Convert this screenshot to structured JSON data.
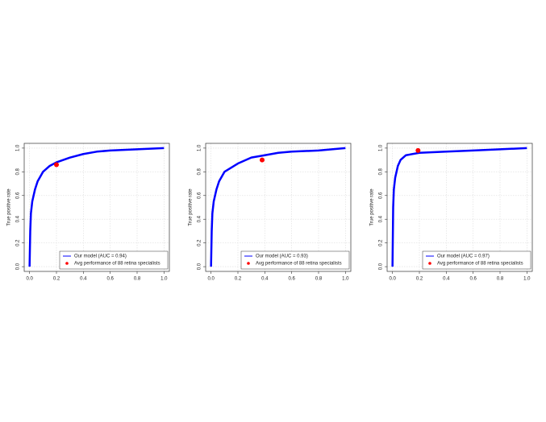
{
  "chart_data": [
    {
      "type": "line",
      "y_label": "True positive rate",
      "grid": true,
      "legend": "lower right",
      "xlim": [
        -0.04,
        1.04
      ],
      "ylim": [
        -0.04,
        1.04
      ],
      "xticks": [
        {
          "value": 0,
          "label": "0.0"
        },
        0.2,
        0.4,
        0.6,
        0.8,
        {
          "value": 1,
          "label": "1.0"
        }
      ],
      "yticks": [
        {
          "value": 0,
          "label": "0.0"
        },
        0.2,
        0.4,
        0.6,
        0.8,
        {
          "value": 1,
          "label": "1.0"
        }
      ],
      "series": [
        {
          "name": "Our model (AUC = 0.94)",
          "color": "#0000ff",
          "type": "line",
          "x": [
            0,
            0.005,
            0.01,
            0.02,
            0.04,
            0.06,
            0.1,
            0.15,
            0.2,
            0.3,
            0.4,
            0.5,
            0.6,
            0.8,
            1
          ],
          "values": [
            0,
            0.3,
            0.45,
            0.55,
            0.65,
            0.72,
            0.8,
            0.85,
            0.88,
            0.92,
            0.95,
            0.97,
            0.98,
            0.99,
            1
          ]
        },
        {
          "name": "Avg performance of 88 retina specialists",
          "color": "#ff0000",
          "type": "scatter",
          "x": [
            0.2
          ],
          "values": [
            0.86
          ]
        }
      ]
    },
    {
      "type": "line",
      "y_label": "True positive rate",
      "grid": true,
      "legend": "lower right",
      "xlim": [
        -0.04,
        1.04
      ],
      "ylim": [
        -0.04,
        1.04
      ],
      "xticks": [
        {
          "value": 0,
          "label": "0.0"
        },
        0.2,
        0.4,
        0.6,
        0.8,
        {
          "value": 1,
          "label": "1.0"
        }
      ],
      "yticks": [
        {
          "value": 0,
          "label": "0.0"
        },
        0.2,
        0.4,
        0.6,
        0.8,
        {
          "value": 1,
          "label": "1.0"
        }
      ],
      "series": [
        {
          "name": "Our model (AUC = 0.93)",
          "color": "#0000ff",
          "type": "line",
          "x": [
            0,
            0.005,
            0.01,
            0.02,
            0.04,
            0.06,
            0.1,
            0.2,
            0.3,
            0.4,
            0.5,
            0.6,
            0.8,
            1
          ],
          "values": [
            0,
            0.3,
            0.45,
            0.55,
            0.65,
            0.72,
            0.8,
            0.87,
            0.92,
            0.94,
            0.96,
            0.97,
            0.98,
            1
          ]
        },
        {
          "name": "Avg performance of 88 retina specialists",
          "color": "#ff0000",
          "type": "scatter",
          "x": [
            0.38
          ],
          "values": [
            0.9
          ]
        }
      ]
    },
    {
      "type": "line",
      "y_label": "True positive rate",
      "grid": true,
      "legend": "lower right",
      "xlim": [
        -0.04,
        1.04
      ],
      "ylim": [
        -0.04,
        1.04
      ],
      "xticks": [
        {
          "value": 0,
          "label": "0.0"
        },
        0.2,
        0.4,
        0.6,
        0.8,
        {
          "value": 1,
          "label": "1.0"
        }
      ],
      "yticks": [
        {
          "value": 0,
          "label": "0.0"
        },
        0.2,
        0.4,
        0.6,
        0.8,
        {
          "value": 1,
          "label": "1.0"
        }
      ],
      "series": [
        {
          "name": "Our model (AUC = 0.97)",
          "color": "#0000ff",
          "type": "line",
          "x": [
            0,
            0.005,
            0.01,
            0.02,
            0.04,
            0.06,
            0.1,
            0.2,
            0.4,
            0.6,
            0.8,
            1
          ],
          "values": [
            0,
            0.5,
            0.65,
            0.75,
            0.85,
            0.9,
            0.94,
            0.96,
            0.97,
            0.98,
            0.99,
            1
          ]
        },
        {
          "name": "Avg performance of 88 retina specialists",
          "color": "#ff0000",
          "type": "scatter",
          "x": [
            0.19
          ],
          "values": [
            0.98
          ]
        }
      ]
    }
  ]
}
